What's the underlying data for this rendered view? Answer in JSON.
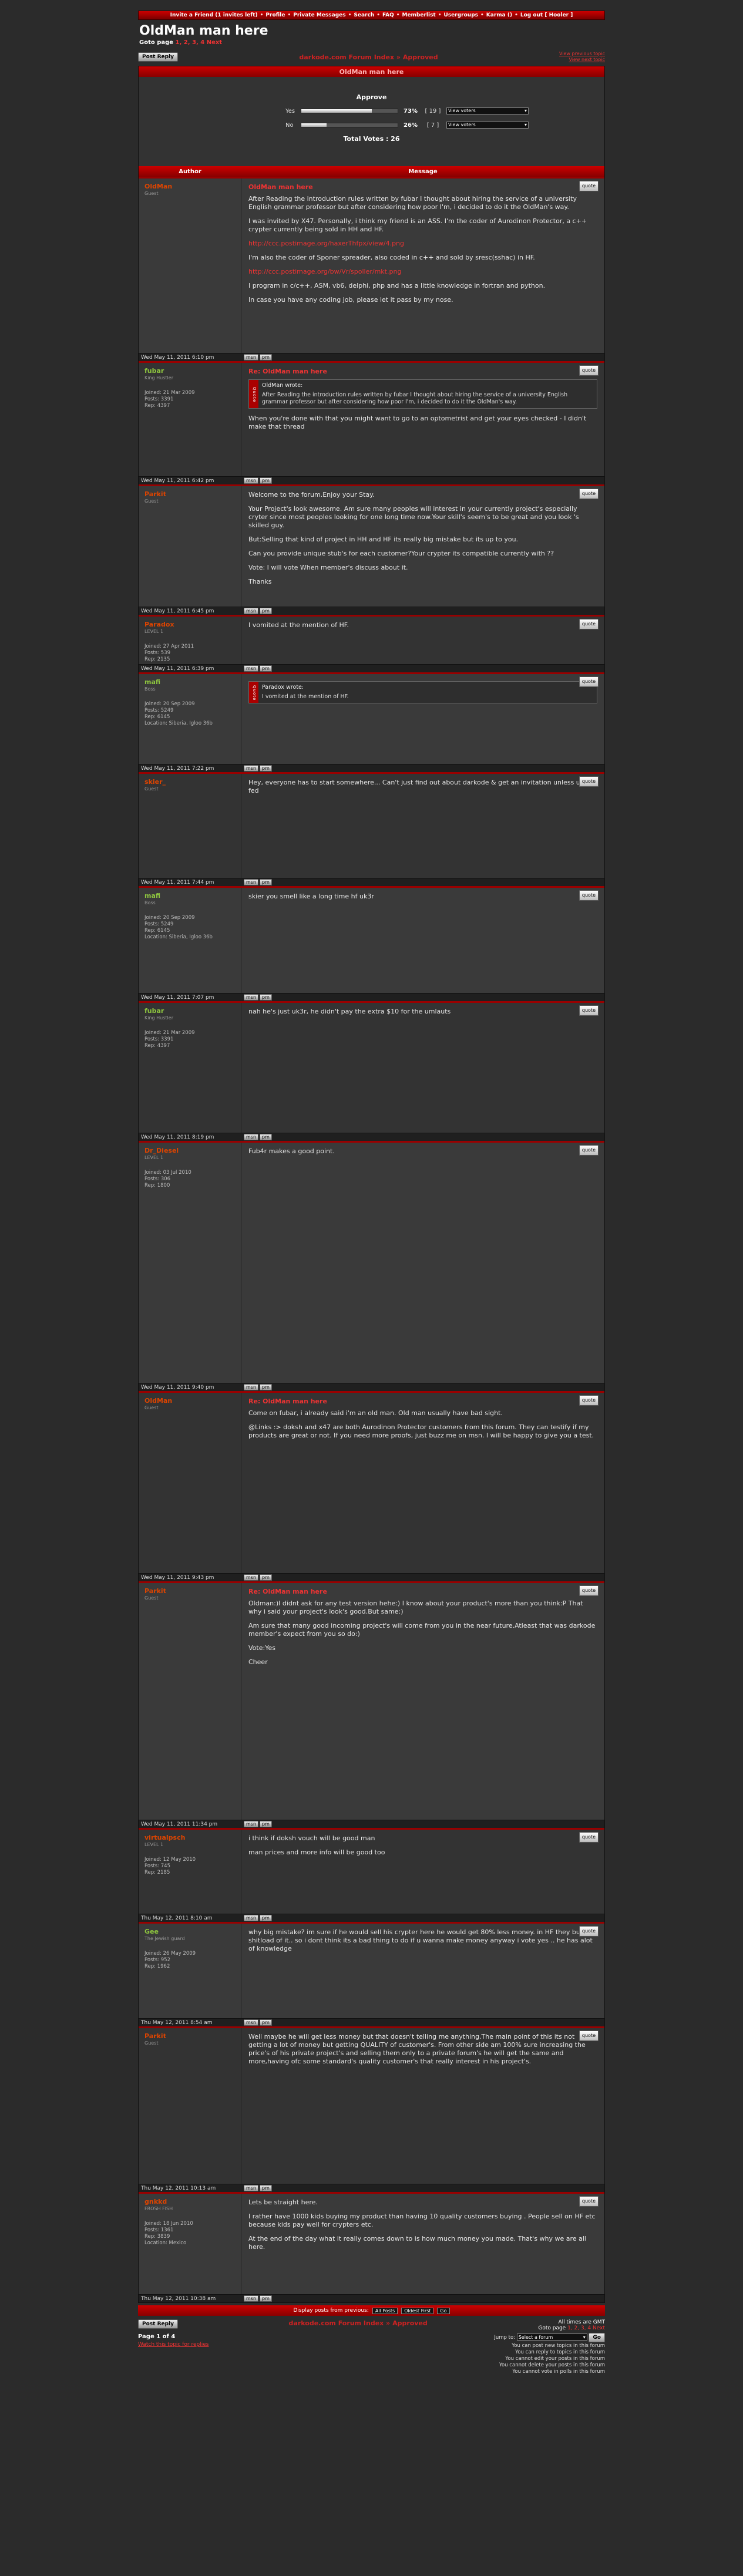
{
  "topnav": {
    "items": [
      "Invite a Friend (1 invites left)",
      "Profile",
      "Private Messages",
      "Search",
      "FAQ",
      "Memberlist",
      "Usergroups",
      "Karma ()",
      "Log out [ Hooler ]"
    ]
  },
  "topic": {
    "title": "OldMan man here",
    "goto_label": "Goto page",
    "goto_pages": "1, 2, 3, 4 Next"
  },
  "nav": {
    "post_reply": "Post Reply",
    "crumb_forum": "darkode.com Forum Index",
    "crumb_sep": "»",
    "crumb_sub": "Approved",
    "view_prev": "View previous topic",
    "view_next": "View next topic"
  },
  "topic_header": "OldMan man here",
  "poll": {
    "title": "Approve",
    "options": [
      {
        "label": "Yes",
        "percent": 73,
        "pct_label": "73%",
        "count": "[ 19 ]",
        "select": "View voters"
      },
      {
        "label": "No",
        "percent": 26,
        "pct_label": "26%",
        "count": "[ 7 ]",
        "select": "View voters"
      }
    ],
    "total": "Total Votes : 26"
  },
  "columns": {
    "author": "Author",
    "message": "Message"
  },
  "quote_btn": "quote",
  "quote_label": "Quote",
  "posts": [
    {
      "author": "OldMan",
      "rank": "Guest",
      "stats": [],
      "title": "OldMan man here",
      "paras": [
        "After Reading the introduction rules written by fubar I thought about hiring the service of a university English grammar professor but after considering how poor I'm, i decided to do it the OldMan's way.",
        "I was invited by X47. Personally, i think my friend is an ASS. I'm the coder of Aurodinon Protector, a c++ crypter currently being sold in HH and HF.",
        "I'm also the coder of Sponer spreader, also coded in c++ and sold by sresc(sshac) in HF.",
        "I program in c/c++, ASM, vb6, delphi, php and has a little knowledge in fortran and python.",
        "In case you have any coding job, please let it pass by my nose."
      ],
      "links": [
        "http://ccc.postimage.org/haxerThfpx/view/4.png",
        "http://ccc.postimage.org/bw/Vr/spoller/mkt.png"
      ],
      "date": "Wed May 11, 2011 6:10 pm"
    },
    {
      "author": "fubar",
      "rank": "King Hustler",
      "stats": [
        "Joined: 21 Mar 2009",
        "Posts: 3391",
        "Rep: 4397"
      ],
      "title": "Re: OldMan man here",
      "quote": "After Reading the introduction rules written by fubar I thought about hiring the service of a university English grammar professor but after considering how poor I'm, i decided to do it the OldMan's way.",
      "quote_who": "OldMan wrote:",
      "paras": [
        "When you're done with that you might want to go to an optometrist and get your eyes checked - I didn't make that thread"
      ],
      "date": "Wed May 11, 2011 6:42 pm"
    },
    {
      "author": "Parkit",
      "rank": "Guest",
      "stats": [],
      "paras": [
        "Welcome to the forum.Enjoy your Stay.",
        "Your Project's look awesome. Am sure many peoples will interest in your currently project's especially cryter since most peoples looking for one long time now.Your skill's seem's to be great and you look 's skilled guy.",
        "But:Selling that kind of project in HH and HF its really big mistake but its up to you.",
        "Can you provide unique stub's for each customer?Your crypter its compatible currently with ??",
        "Vote: I will vote When member's discuss about it.",
        "Thanks"
      ],
      "date": "Wed May 11, 2011 6:45 pm"
    },
    {
      "author": "Paradox",
      "rank": "LEVEL 1",
      "stats": [
        "Joined: 27 Apr 2011",
        "Posts: 539",
        "Rep: 2135"
      ],
      "paras": [
        "I vomited at the mention of HF."
      ],
      "date": "Wed May 11, 2011 6:39 pm"
    },
    {
      "author": "mafi",
      "rank": "Boss",
      "stats": [
        "Joined: 20 Sep 2009",
        "Posts: 5249",
        "Rep: 6145",
        "Location: Siberia, Igloo 36b"
      ],
      "quote_who": "Paradox wrote:",
      "quote": "I vomited at the mention of HF.",
      "paras": [],
      "date": "Wed May 11, 2011 7:22 pm"
    },
    {
      "author": "skier_",
      "rank": "Guest",
      "stats": [],
      "paras": [
        "Hey, everyone has to start somewhere... Can't just find out about darkode & get an invitation unless u r a fed"
      ],
      "date": "Wed May 11, 2011 7:44 pm"
    },
    {
      "author": "mafi",
      "rank": "Boss",
      "stats": [
        "Joined: 20 Sep 2009",
        "Posts: 5249",
        "Rep: 6145",
        "Location: Siberia, Igloo 36b"
      ],
      "paras": [
        "skier you smell like a long time hf uk3r"
      ],
      "date": "Wed May 11, 2011 7:07 pm"
    },
    {
      "author": "fubar",
      "rank": "King Hustler",
      "stats": [
        "Joined: 21 Mar 2009",
        "Posts: 3391",
        "Rep: 4397"
      ],
      "paras": [
        "nah he's just uk3r, he didn't pay the extra $10 for the umlauts"
      ],
      "date": "Wed May 11, 2011 8:19 pm"
    },
    {
      "author": "Dr_Diesel",
      "rank": "LEVEL 1",
      "stats": [
        "Joined: 03 Jul 2010",
        "Posts: 306",
        "Rep: 1800"
      ],
      "paras": [
        "Fub4r makes a good point."
      ],
      "date": "Wed May 11, 2011 9:40 pm"
    },
    {
      "author": "OldMan",
      "rank": "Guest",
      "stats": [],
      "title": "Re: OldMan man here",
      "paras": [
        "Come on fubar, i already said i'm an old man. Old man usually have bad sight.",
        "@Links :> doksh and x47 are both Aurodinon Protector customers from this forum. They can testify if my products are great or not. If you need more proofs, just buzz me on msn. I will be happy to give you a test."
      ],
      "date": "Wed May 11, 2011 9:43 pm"
    },
    {
      "author": "Parkit",
      "rank": "Guest",
      "stats": [],
      "title": "Re: OldMan man here",
      "paras": [
        "Oldman:)I didnt ask for any test version hehe:) I know about your product's more than you think:P That why i said your project's look's good.But same:)",
        "Am sure that many good incoming project's will come from you in the near future.Atleast that was darkode member's expect from you so do:)",
        "Vote:Yes",
        "Cheer"
      ],
      "date": "Wed May 11, 2011 11:34 pm"
    },
    {
      "author": "virtualpsch",
      "rank": "LEVEL 1",
      "stats": [
        "Joined: 12 May 2010",
        "Posts: 745",
        "Rep: 2185"
      ],
      "paras": [
        "i think if doksh vouch will be good man",
        "man prices and more info will be good too"
      ],
      "date": "Thu May 12, 2011 8:10 am"
    },
    {
      "author": "Gee",
      "rank": "The Jewish guard",
      "stats": [
        "Joined: 26 May 2009",
        "Posts: 952",
        "Rep: 1962"
      ],
      "paras": [
        "why big mistake? im sure if he would sell his crypter here he would get 80% less money. in HF they buy shitload of it.. so i dont think its a bad thing to do if u wanna make money anyway i vote yes .. he has alot of knowledge"
      ],
      "date": "Thu May 12, 2011 8:54 am"
    },
    {
      "author": "Parkit",
      "rank": "Guest",
      "stats": [],
      "paras": [
        "Well maybe he will get less money but that doesn't telling me anything.The main point of this its not getting a lot of money but getting QUALITY of customer's. From other side am 100% sure increasing the price's of his private project's and selling them only to a private forum's he will get the same and more,having ofc some standard's quality customer's that really interest in his project's."
      ],
      "date": "Thu May 12, 2011 10:13 am"
    },
    {
      "author": "gnkkd",
      "rank": "FROSH FISH",
      "stats": [
        "Joined: 18 Jun 2010",
        "Posts: 1361",
        "Rep: 3839",
        "Location: Mexico"
      ],
      "paras": [
        "Lets be straight here.",
        "I rather have 1000 kids buying my product than having 10 quality customers buying . People sell on HF etc because kids pay well for crypters etc.",
        "At the end of the day what it really comes down to is how much money you made. That's why we are all here."
      ],
      "date": "Thu May 12, 2011 10:38 am"
    }
  ],
  "footer": {
    "display_label": "Display posts from previous:",
    "all_posts": "All Posts",
    "oldest_first": "Oldest First",
    "go": "Go",
    "timezone": "All times are GMT",
    "goto_label": "Goto page",
    "goto_pages": "1, 2, 3, 4 Next",
    "page_of": "Page 1 of 4",
    "watch": "Watch this topic for replies",
    "jump_to": "Jump to:",
    "select_forum": "Select a forum",
    "perms": [
      "You can post new topics in this forum",
      "You can reply to topics in this forum",
      "You cannot edit your posts in this forum",
      "You cannot delete your posts in this forum",
      "You cannot vote in polls in this forum"
    ]
  },
  "foot_btns": {
    "msn": "msn",
    "pm": "pm"
  }
}
